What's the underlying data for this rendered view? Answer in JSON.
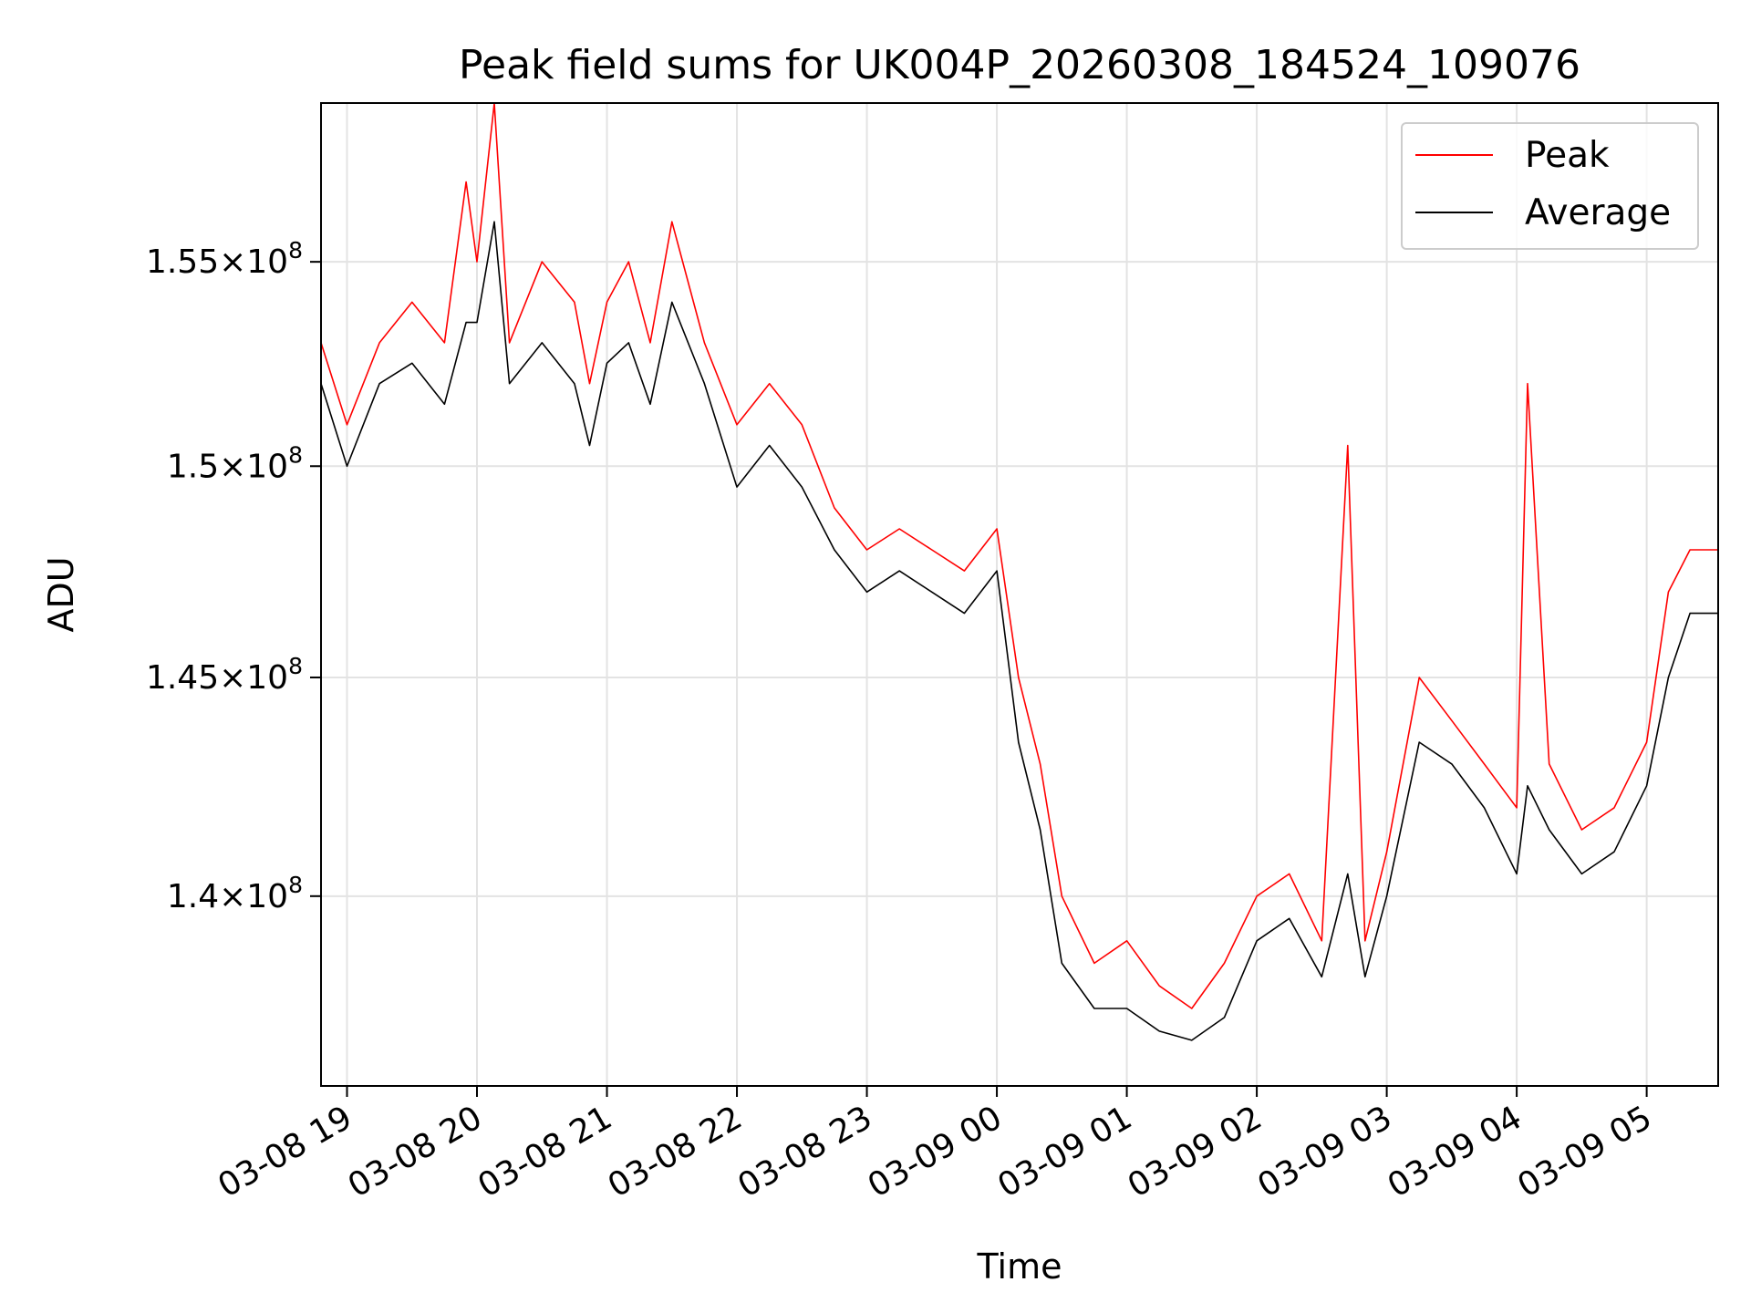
{
  "chart_data": {
    "type": "line",
    "title": "Peak field sums for UK004P_20260308_184524_109076",
    "xlabel": "Time",
    "ylabel": "ADU",
    "y_scale": "log",
    "ylim": [
      135800000,
      159000000
    ],
    "xlim": [
      "2026-03-08 18:48",
      "2026-03-09 05:33"
    ],
    "grid": true,
    "legend_position": "upper right",
    "x_ticks": [
      {
        "label": "03-08 19",
        "value": "2026-03-08 19:00"
      },
      {
        "label": "03-08 20",
        "value": "2026-03-08 20:00"
      },
      {
        "label": "03-08 21",
        "value": "2026-03-08 21:00"
      },
      {
        "label": "03-08 22",
        "value": "2026-03-08 22:00"
      },
      {
        "label": "03-08 23",
        "value": "2026-03-08 23:00"
      },
      {
        "label": "03-09 00",
        "value": "2026-03-09 00:00"
      },
      {
        "label": "03-09 01",
        "value": "2026-03-09 01:00"
      },
      {
        "label": "03-09 02",
        "value": "2026-03-09 02:00"
      },
      {
        "label": "03-09 03",
        "value": "2026-03-09 03:00"
      },
      {
        "label": "03-09 04",
        "value": "2026-03-09 04:00"
      },
      {
        "label": "03-09 05",
        "value": "2026-03-09 05:00"
      }
    ],
    "y_ticks": [
      {
        "mantissa": "1.4",
        "exponent": "8",
        "value": 140000000
      },
      {
        "mantissa": "1.45",
        "exponent": "8",
        "value": 145000000
      },
      {
        "mantissa": "1.5",
        "exponent": "8",
        "value": 150000000
      },
      {
        "mantissa": "1.55",
        "exponent": "8",
        "value": 155000000
      }
    ],
    "series": [
      {
        "name": "Peak",
        "color": "#ff0000",
        "x": [
          "2026-03-08 18:48",
          "2026-03-08 19:00",
          "2026-03-08 19:15",
          "2026-03-08 19:30",
          "2026-03-08 19:45",
          "2026-03-08 19:55",
          "2026-03-08 20:00",
          "2026-03-08 20:08",
          "2026-03-08 20:15",
          "2026-03-08 20:30",
          "2026-03-08 20:45",
          "2026-03-08 20:52",
          "2026-03-08 21:00",
          "2026-03-08 21:10",
          "2026-03-08 21:20",
          "2026-03-08 21:30",
          "2026-03-08 21:45",
          "2026-03-08 22:00",
          "2026-03-08 22:15",
          "2026-03-08 22:30",
          "2026-03-08 22:45",
          "2026-03-08 23:00",
          "2026-03-08 23:15",
          "2026-03-08 23:30",
          "2026-03-08 23:45",
          "2026-03-09 00:00",
          "2026-03-09 00:10",
          "2026-03-09 00:20",
          "2026-03-09 00:30",
          "2026-03-09 00:45",
          "2026-03-09 01:00",
          "2026-03-09 01:15",
          "2026-03-09 01:30",
          "2026-03-09 01:45",
          "2026-03-09 02:00",
          "2026-03-09 02:15",
          "2026-03-09 02:30",
          "2026-03-09 02:42",
          "2026-03-09 02:50",
          "2026-03-09 03:00",
          "2026-03-09 03:15",
          "2026-03-09 03:30",
          "2026-03-09 03:45",
          "2026-03-09 04:00",
          "2026-03-09 04:05",
          "2026-03-09 04:15",
          "2026-03-09 04:30",
          "2026-03-09 04:45",
          "2026-03-09 05:00",
          "2026-03-09 05:10",
          "2026-03-09 05:20",
          "2026-03-09 05:33"
        ],
        "values": [
          153000000,
          151000000,
          153000000,
          154000000,
          153000000,
          157000000,
          155000000,
          159000000,
          153000000,
          155000000,
          154000000,
          152000000,
          154000000,
          155000000,
          153000000,
          156000000,
          153000000,
          151000000,
          152000000,
          151000000,
          149000000,
          148000000,
          148500000,
          148000000,
          147500000,
          148500000,
          145000000,
          143000000,
          140000000,
          138500000,
          139000000,
          138000000,
          137500000,
          138500000,
          140000000,
          140500000,
          139000000,
          150500000,
          139000000,
          141000000,
          145000000,
          144000000,
          143000000,
          142000000,
          152000000,
          143000000,
          141500000,
          142000000,
          143500000,
          147000000,
          148000000,
          148000000
        ]
      },
      {
        "name": "Average",
        "color": "#000000",
        "x": [
          "2026-03-08 18:48",
          "2026-03-08 19:00",
          "2026-03-08 19:15",
          "2026-03-08 19:30",
          "2026-03-08 19:45",
          "2026-03-08 19:55",
          "2026-03-08 20:00",
          "2026-03-08 20:08",
          "2026-03-08 20:15",
          "2026-03-08 20:30",
          "2026-03-08 20:45",
          "2026-03-08 20:52",
          "2026-03-08 21:00",
          "2026-03-08 21:10",
          "2026-03-08 21:20",
          "2026-03-08 21:30",
          "2026-03-08 21:45",
          "2026-03-08 22:00",
          "2026-03-08 22:15",
          "2026-03-08 22:30",
          "2026-03-08 22:45",
          "2026-03-08 23:00",
          "2026-03-08 23:15",
          "2026-03-08 23:30",
          "2026-03-08 23:45",
          "2026-03-09 00:00",
          "2026-03-09 00:10",
          "2026-03-09 00:20",
          "2026-03-09 00:30",
          "2026-03-09 00:45",
          "2026-03-09 01:00",
          "2026-03-09 01:15",
          "2026-03-09 01:30",
          "2026-03-09 01:45",
          "2026-03-09 02:00",
          "2026-03-09 02:15",
          "2026-03-09 02:30",
          "2026-03-09 02:42",
          "2026-03-09 02:50",
          "2026-03-09 03:00",
          "2026-03-09 03:15",
          "2026-03-09 03:30",
          "2026-03-09 03:45",
          "2026-03-09 04:00",
          "2026-03-09 04:05",
          "2026-03-09 04:15",
          "2026-03-09 04:30",
          "2026-03-09 04:45",
          "2026-03-09 05:00",
          "2026-03-09 05:10",
          "2026-03-09 05:20",
          "2026-03-09 05:33"
        ],
        "values": [
          152000000,
          150000000,
          152000000,
          152500000,
          151500000,
          153500000,
          153500000,
          156000000,
          152000000,
          153000000,
          152000000,
          150500000,
          152500000,
          153000000,
          151500000,
          154000000,
          152000000,
          149500000,
          150500000,
          149500000,
          148000000,
          147000000,
          147500000,
          147000000,
          146500000,
          147500000,
          143500000,
          141500000,
          138500000,
          137500000,
          137500000,
          137000000,
          136800000,
          137300000,
          139000000,
          139500000,
          138200000,
          140500000,
          138200000,
          140000000,
          143500000,
          143000000,
          142000000,
          140500000,
          142500000,
          141500000,
          140500000,
          141000000,
          142500000,
          145000000,
          146500000,
          146500000
        ]
      }
    ]
  }
}
